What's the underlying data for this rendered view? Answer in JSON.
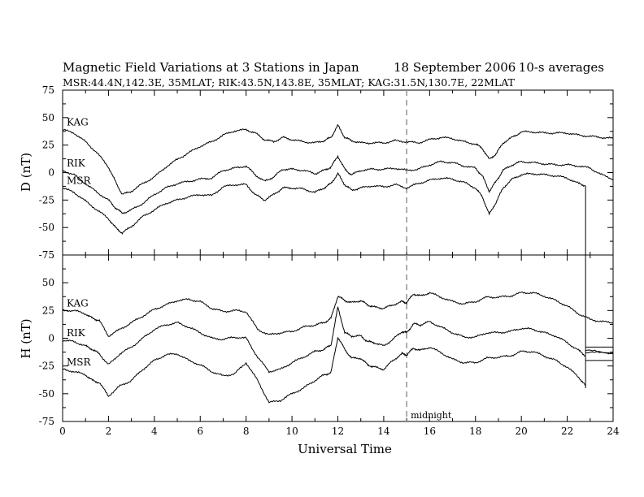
{
  "header": {
    "title": "Magnetic Field Variations at 3 Stations in Japan",
    "date": "18 September 2006",
    "averaging": "10-s averages",
    "stations": "MSR:44.4N,142.3E, 35MLAT;  RIK:43.5N,143.8E, 35MLAT;  KAG:31.5N,130.7E, 22MLAT"
  },
  "chart_data": [
    {
      "type": "line",
      "panel": "D",
      "ylabel": "D (nT)",
      "ylim": [
        -75,
        75
      ],
      "yticks": [
        "75",
        "50",
        "25",
        "0",
        "-25",
        "-50",
        "-75"
      ],
      "xlim": [
        0,
        24
      ],
      "xticks": [
        "0",
        "2",
        "4",
        "6",
        "8",
        "10",
        "12",
        "14",
        "16",
        "18",
        "20",
        "22",
        "24"
      ],
      "grid": false,
      "annotations": [
        {
          "x": 15,
          "style": "dashed-vertical"
        }
      ],
      "series": [
        {
          "name": "KAG",
          "x": [
            0,
            0.5,
            1,
            1.5,
            2,
            2.3,
            2.6,
            3,
            3.5,
            4,
            4.5,
            5,
            5.5,
            6,
            6.5,
            7,
            7.5,
            8,
            8.4,
            8.8,
            9.2,
            9.6,
            10,
            10.5,
            11,
            11.4,
            11.7,
            12,
            12.3,
            12.6,
            13,
            13.5,
            14,
            14.5,
            15,
            15.5,
            16,
            16.5,
            17,
            17.5,
            18,
            18.3,
            18.6,
            18.9,
            19.2,
            19.6,
            20,
            20.5,
            21,
            21.5,
            22,
            22.5,
            23,
            23.5,
            24
          ],
          "values": [
            39,
            36,
            28,
            18,
            5,
            -8,
            -20,
            -17,
            -10,
            -4,
            5,
            12,
            18,
            24,
            28,
            34,
            38,
            39,
            36,
            30,
            28,
            32,
            30,
            28,
            27,
            29,
            32,
            43,
            32,
            29,
            27,
            27,
            27,
            29,
            28,
            27,
            30,
            32,
            31,
            28,
            26,
            22,
            12,
            17,
            27,
            32,
            37,
            37,
            36,
            36,
            36,
            34,
            33,
            32,
            31
          ]
        },
        {
          "name": "RIK",
          "x": [
            0,
            0.5,
            1,
            1.5,
            2,
            2.3,
            2.6,
            3,
            3.5,
            4,
            4.5,
            5,
            5.5,
            6,
            6.5,
            7,
            7.5,
            8,
            8.4,
            8.8,
            9.2,
            9.6,
            10,
            10.5,
            11,
            11.4,
            11.7,
            12,
            12.3,
            12.6,
            13,
            13.5,
            14,
            14.5,
            15,
            15.5,
            16,
            16.5,
            17,
            17.5,
            18,
            18.3,
            18.6,
            18.9,
            19.2,
            19.6,
            20,
            20.5,
            21,
            21.5,
            22,
            22.5,
            23,
            23.5,
            24
          ],
          "values": [
            2,
            -2,
            -10,
            -18,
            -25,
            -32,
            -37,
            -34,
            -28,
            -20,
            -14,
            -10,
            -8,
            -6,
            -5,
            2,
            4,
            6,
            -2,
            -8,
            -4,
            3,
            3,
            2,
            -1,
            2,
            5,
            15,
            3,
            -2,
            2,
            3,
            3,
            4,
            2,
            3,
            7,
            10,
            9,
            6,
            4,
            -3,
            -17,
            -8,
            2,
            7,
            10,
            9,
            8,
            7,
            7,
            6,
            4,
            -2,
            -6
          ]
        },
        {
          "name": "MSR",
          "x": [
            0,
            0.5,
            1,
            1.5,
            2,
            2.3,
            2.6,
            3,
            3.5,
            4,
            4.5,
            5,
            5.5,
            6,
            6.5,
            7,
            7.5,
            8,
            8.4,
            8.8,
            9.2,
            9.6,
            10,
            10.5,
            11,
            11.4,
            11.7,
            12,
            12.3,
            12.6,
            13,
            13.5,
            14,
            14.5,
            15,
            15.5,
            16,
            16.5,
            17,
            17.5,
            18,
            18.3,
            18.6,
            18.9,
            19.2,
            19.6,
            20,
            20.5,
            21,
            21.5,
            22,
            22.5,
            22.8
          ],
          "values": [
            -14,
            -18,
            -26,
            -34,
            -42,
            -50,
            -55,
            -49,
            -40,
            -34,
            -28,
            -25,
            -22,
            -20,
            -21,
            -13,
            -11,
            -11,
            -20,
            -25,
            -20,
            -14,
            -14,
            -15,
            -18,
            -14,
            -10,
            -1,
            -11,
            -16,
            -14,
            -12,
            -13,
            -11,
            -14,
            -10,
            -7,
            -5,
            -6,
            -9,
            -14,
            -22,
            -38,
            -27,
            -14,
            -6,
            -2,
            -1,
            -2,
            -3,
            -5,
            -10,
            -12
          ]
        }
      ]
    },
    {
      "type": "line",
      "panel": "H",
      "ylabel": "H (nT)",
      "ylim": [
        -75,
        75
      ],
      "yticks": [
        "50",
        "25",
        "0",
        "-25",
        "-50",
        "-75"
      ],
      "xlim": [
        0,
        24
      ],
      "xticks": [
        "0",
        "2",
        "4",
        "6",
        "8",
        "10",
        "12",
        "14",
        "16",
        "18",
        "20",
        "22",
        "24"
      ],
      "xlabel": "Universal Time",
      "grid": false,
      "annotations": [
        {
          "x": 15,
          "style": "dashed-vertical",
          "text": "midnight"
        }
      ],
      "series": [
        {
          "name": "KAG",
          "x": [
            0,
            0.5,
            1,
            1.3,
            1.6,
            2,
            2.5,
            3,
            3.5,
            4,
            4.5,
            5,
            5.5,
            6,
            6.5,
            7,
            7.5,
            8,
            8.5,
            9,
            9.5,
            10,
            10.5,
            11,
            11.4,
            11.7,
            12,
            12.3,
            12.6,
            13,
            13.3,
            13.6,
            14,
            14.4,
            14.8,
            15,
            15.3,
            15.6,
            16,
            16.5,
            17,
            17.5,
            18,
            18.5,
            19,
            19.5,
            20,
            20.5,
            21,
            21.5,
            22,
            22.5,
            23,
            23.5,
            24
          ],
          "values": [
            25,
            25,
            22,
            18,
            16,
            2,
            8,
            14,
            20,
            26,
            30,
            34,
            35,
            33,
            27,
            24,
            25,
            24,
            8,
            3,
            5,
            6,
            10,
            12,
            14,
            18,
            38,
            34,
            32,
            34,
            30,
            28,
            27,
            30,
            33,
            32,
            40,
            38,
            41,
            37,
            33,
            31,
            33,
            37,
            37,
            38,
            41,
            41,
            38,
            34,
            29,
            22,
            17,
            15,
            14
          ]
        },
        {
          "name": "RIK",
          "x": [
            0,
            0.5,
            1,
            1.3,
            1.6,
            2,
            2.5,
            3,
            3.5,
            4,
            4.5,
            5,
            5.5,
            6,
            6.5,
            7,
            7.5,
            8,
            8.5,
            9,
            9.5,
            10,
            10.5,
            11,
            11.4,
            11.7,
            12,
            12.3,
            12.6,
            13,
            13.3,
            13.6,
            14,
            14.4,
            14.8,
            15,
            15.3,
            15.6,
            16,
            16.5,
            17,
            17.5,
            18,
            18.5,
            19,
            19.5,
            20,
            20.5,
            21,
            21.5,
            22,
            22.5,
            22.8
          ],
          "values": [
            -2,
            -3,
            -7,
            -10,
            -14,
            -24,
            -14,
            -8,
            0,
            8,
            12,
            14,
            10,
            5,
            0,
            -1,
            1,
            0,
            -17,
            -30,
            -28,
            -22,
            -17,
            -12,
            -10,
            -6,
            28,
            5,
            2,
            2,
            -3,
            -4,
            -7,
            -1,
            6,
            5,
            13,
            12,
            15,
            10,
            5,
            1,
            1,
            5,
            5,
            6,
            9,
            8,
            5,
            2,
            -4,
            -11,
            -16
          ]
        },
        {
          "name": "MSR",
          "x": [
            0,
            0.5,
            1,
            1.3,
            1.6,
            2,
            2.5,
            3,
            3.5,
            4,
            4.5,
            5,
            5.5,
            6,
            6.5,
            7,
            7.5,
            8,
            8.5,
            9,
            9.5,
            10,
            10.5,
            11,
            11.4,
            11.7,
            12,
            12.3,
            12.6,
            13,
            13.3,
            13.6,
            14,
            14.4,
            14.8,
            15,
            15.3,
            15.6,
            16,
            16.5,
            17,
            17.5,
            18,
            18.5,
            19,
            19.5,
            20,
            20.5,
            21,
            21.5,
            22,
            22.5,
            22.8
          ],
          "values": [
            -28,
            -30,
            -33,
            -38,
            -40,
            -52,
            -43,
            -38,
            -28,
            -20,
            -15,
            -14,
            -20,
            -24,
            -30,
            -34,
            -32,
            -22,
            -38,
            -58,
            -56,
            -50,
            -45,
            -38,
            -33,
            -31,
            1,
            -10,
            -18,
            -18,
            -24,
            -26,
            -28,
            -20,
            -14,
            -15,
            -9,
            -11,
            -8,
            -13,
            -19,
            -22,
            -22,
            -18,
            -17,
            -16,
            -12,
            -12,
            -16,
            -20,
            -26,
            -35,
            -43
          ]
        }
      ]
    }
  ]
}
